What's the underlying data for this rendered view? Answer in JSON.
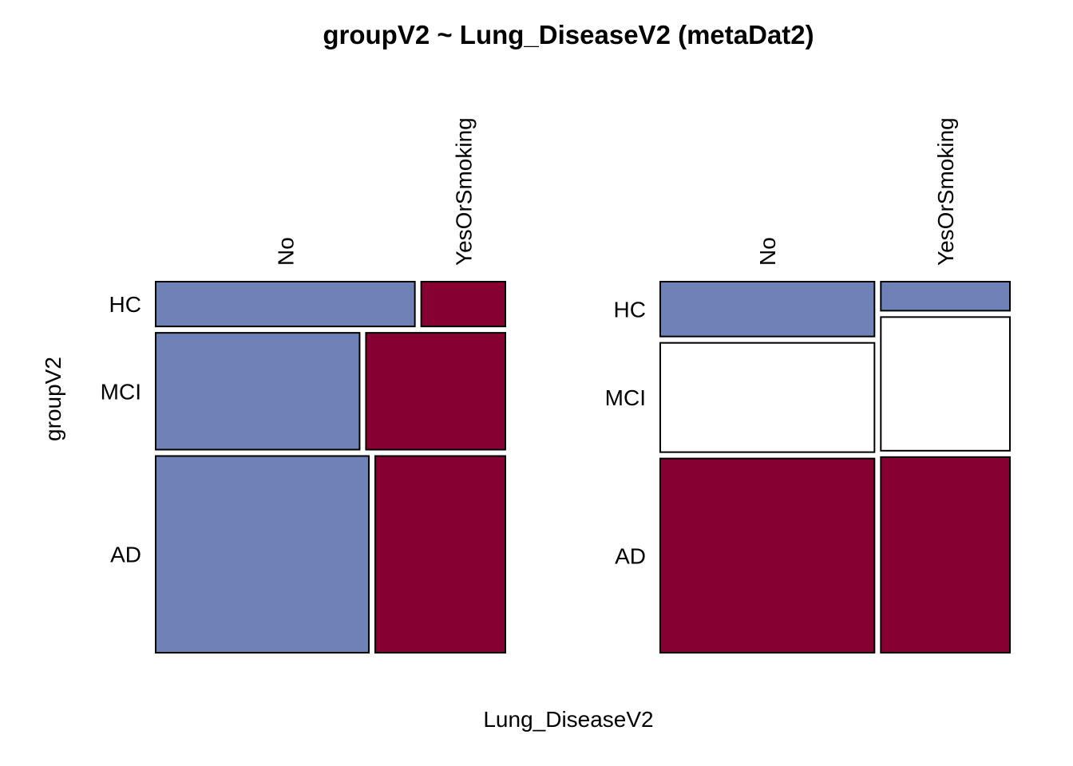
{
  "chart_data": {
    "type": "mosaic",
    "title": "groupV2 ~ Lung_DiseaseV2 (metaDat2)",
    "xlabel": "Lung_DiseaseV2",
    "ylabel": "groupV2",
    "colors": {
      "blue": "#6f82b7",
      "red": "#860032",
      "white": "#ffffff",
      "border": "#000000"
    },
    "panels": [
      {
        "arrangement": "rows-first",
        "row_categories": [
          "HC",
          "MCI",
          "AD"
        ],
        "col_categories": [
          "No",
          "YesOrSmoking"
        ],
        "row_proportions": [
          0.125,
          0.326,
          0.549
        ],
        "col_proportions_by_row": [
          [
            0.755,
            0.245
          ],
          [
            0.594,
            0.406
          ],
          [
            0.621,
            0.379
          ]
        ],
        "fill": [
          [
            "blue",
            "red"
          ],
          [
            "blue",
            "red"
          ],
          [
            "blue",
            "red"
          ]
        ]
      },
      {
        "arrangement": "cols-first",
        "row_categories": [
          "HC",
          "MCI",
          "AD"
        ],
        "col_categories": [
          "No",
          "YesOrSmoking"
        ],
        "col_proportions": [
          0.624,
          0.376
        ],
        "row_proportions_by_col": [
          [
            0.153,
            0.305,
            0.542
          ],
          [
            0.081,
            0.373,
            0.546
          ]
        ],
        "fill": [
          [
            "blue",
            "white",
            "red"
          ],
          [
            "blue",
            "white",
            "red"
          ]
        ]
      }
    ]
  }
}
